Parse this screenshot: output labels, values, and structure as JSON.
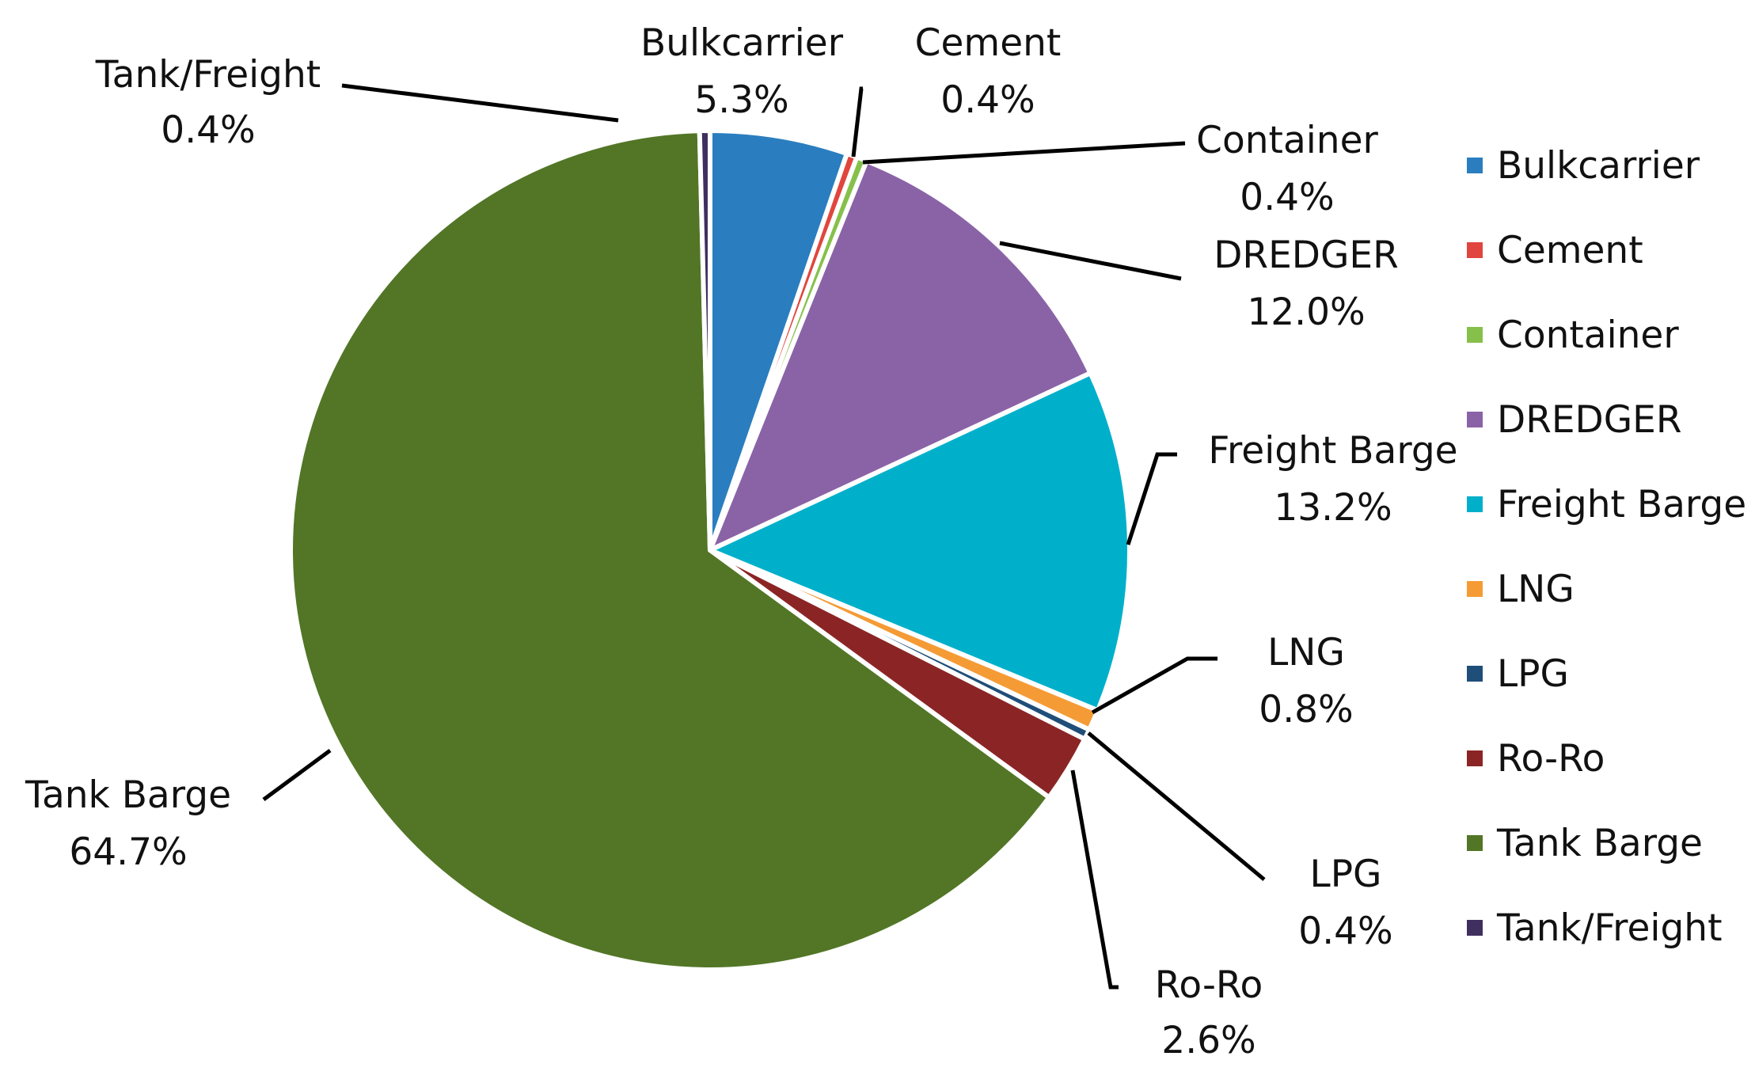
{
  "chart_data": {
    "type": "pie",
    "title": "",
    "legend_position": "right",
    "slices": [
      {
        "label": "Bulkcarrier",
        "value": 5.3,
        "display": "5.3%",
        "color": "#2a7ebf"
      },
      {
        "label": "Cement",
        "value": 0.4,
        "display": "0.4%",
        "color": "#e0463e"
      },
      {
        "label": "Container",
        "value": 0.4,
        "display": "0.4%",
        "color": "#86c04b"
      },
      {
        "label": "DREDGER",
        "value": 12.0,
        "display": "12.0%",
        "color": "#8a63a7"
      },
      {
        "label": "Freight Barge",
        "value": 13.2,
        "display": "13.2%",
        "color": "#00b0ca"
      },
      {
        "label": "LNG",
        "value": 0.8,
        "display": "0.8%",
        "color": "#f59b35"
      },
      {
        "label": "LPG",
        "value": 0.4,
        "display": "0.4%",
        "color": "#1f4e79"
      },
      {
        "label": "Ro-Ro",
        "value": 2.6,
        "display": "2.6%",
        "color": "#8b2525"
      },
      {
        "label": "Tank Barge",
        "value": 64.7,
        "display": "64.7%",
        "color": "#527626"
      },
      {
        "label": "Tank/Freight",
        "value": 0.4,
        "display": "0.4%",
        "color": "#3f2f5e"
      }
    ]
  }
}
